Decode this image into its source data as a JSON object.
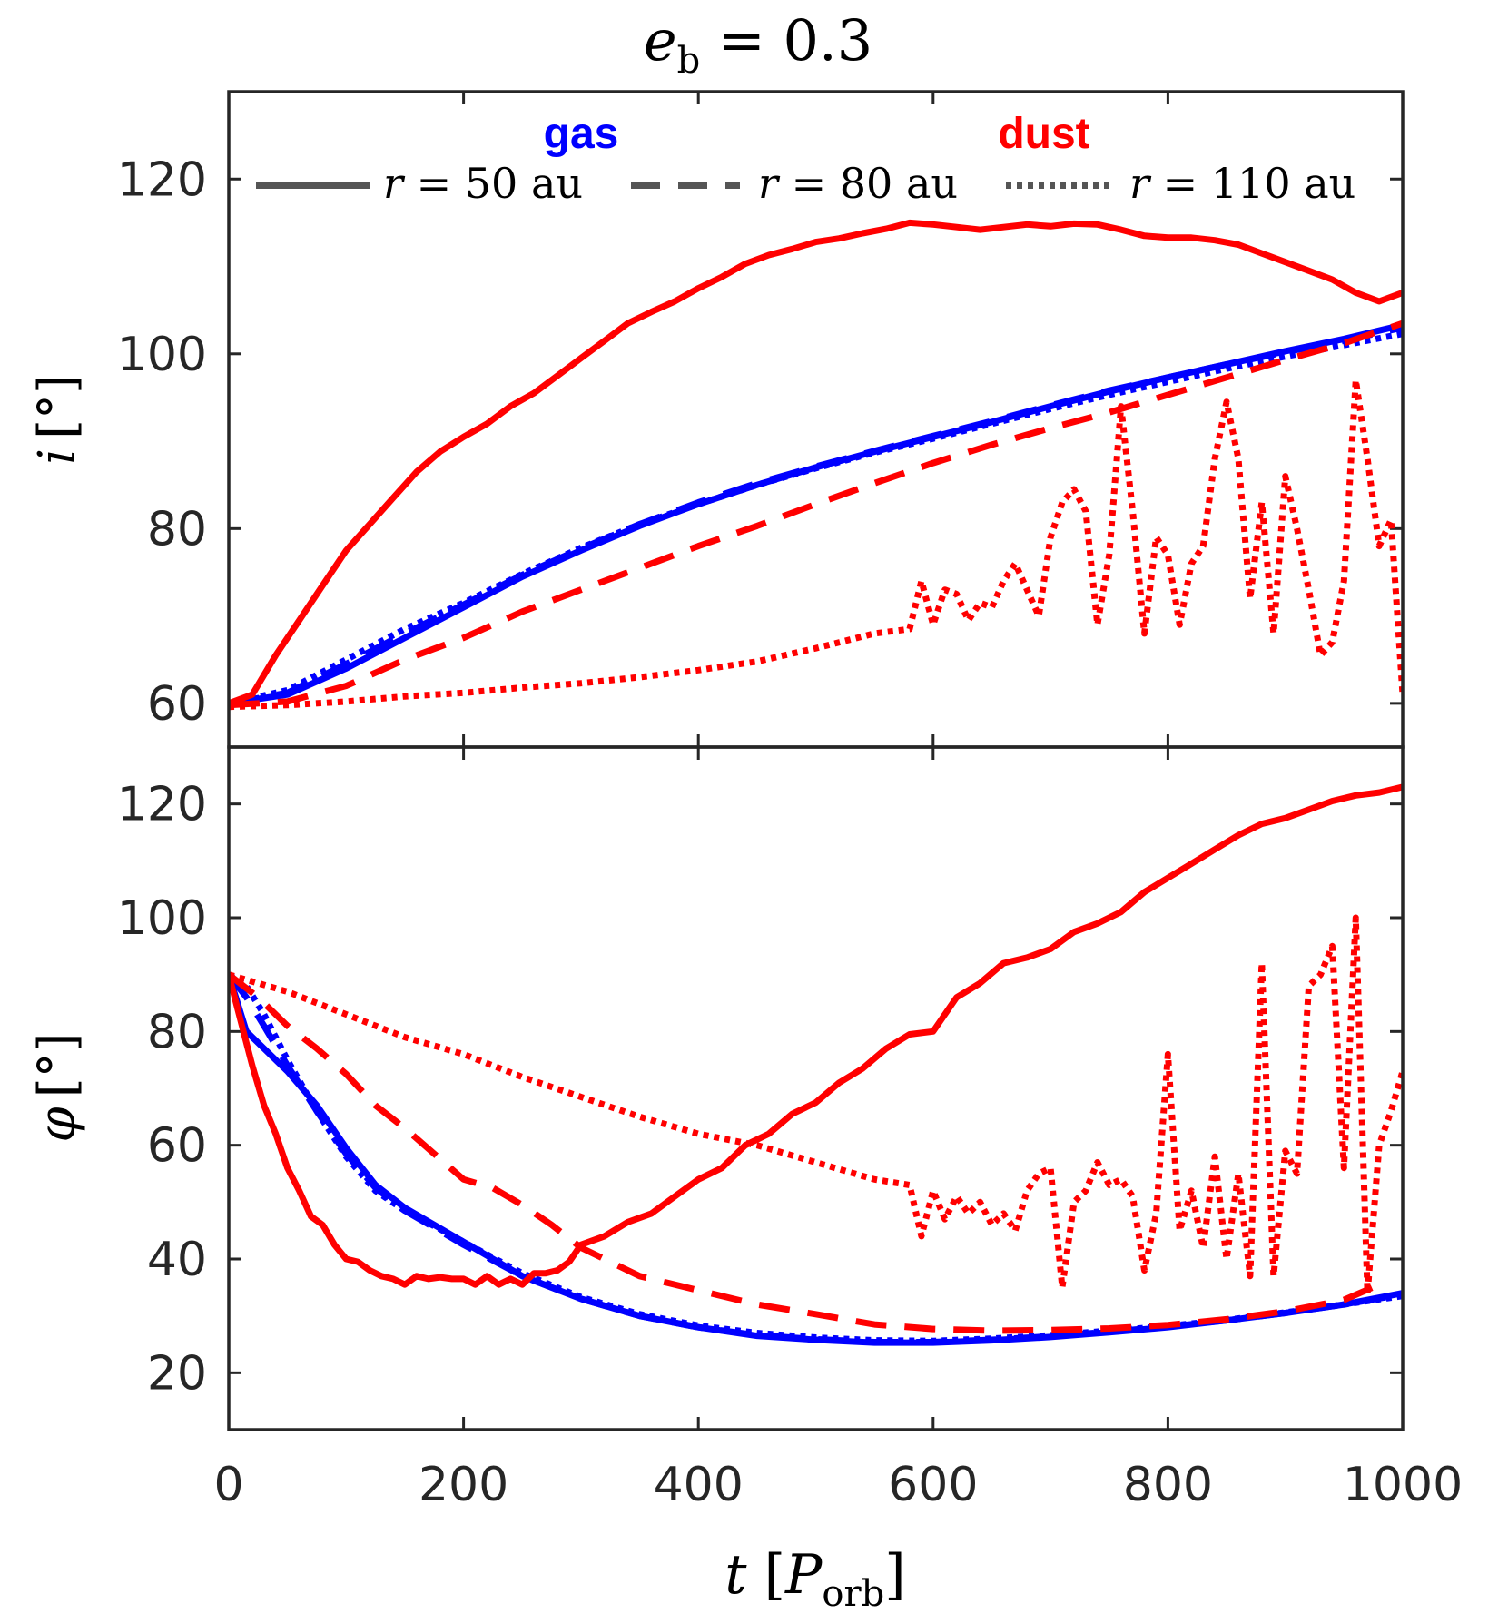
{
  "chart_data": [
    {
      "panel": "top",
      "type": "line",
      "title": "e_b = 0.3",
      "title_parts": {
        "var": "e",
        "sub": "b",
        "rest": " = 0.3"
      },
      "xlabel": "t [P_orb]",
      "ylabel": "i [°]",
      "ylabel_parts": {
        "var": "i",
        "unit": "[°]"
      },
      "xlim": [
        0,
        1000
      ],
      "ylim": [
        55,
        130
      ],
      "xticks": [
        0,
        200,
        400,
        600,
        800,
        1000
      ],
      "yticks": [
        60,
        80,
        100,
        120
      ],
      "ytick_labels": [
        "60",
        "80",
        "100",
        "120"
      ],
      "legend": {
        "position": "top",
        "group_labels": {
          "gas": "gas",
          "dust": "dust"
        },
        "entries": [
          {
            "style": "solid",
            "label_var": "r",
            "label_value": " = 50 au"
          },
          {
            "style": "dashed",
            "label_var": "r",
            "label_value": " = 80 au"
          },
          {
            "style": "dotted",
            "label_var": "r",
            "label_value": " = 110 au"
          }
        ]
      },
      "series": [
        {
          "name": "gas r=50 au",
          "color": "#0000ff",
          "style": "solid",
          "x": [
            0,
            50,
            100,
            150,
            200,
            250,
            300,
            350,
            400,
            450,
            500,
            550,
            600,
            650,
            700,
            750,
            800,
            850,
            900,
            950,
            1000
          ],
          "y": [
            60,
            61,
            64,
            67.5,
            71,
            74.5,
            77.5,
            80.3,
            82.8,
            85,
            87,
            88.8,
            90.5,
            92.2,
            94,
            95.7,
            97.3,
            98.8,
            100.3,
            101.7,
            103.3
          ]
        },
        {
          "name": "gas r=80 au",
          "color": "#0000ff",
          "style": "dashed",
          "x": [
            0,
            50,
            100,
            150,
            200,
            250,
            300,
            350,
            400,
            450,
            500,
            550,
            600,
            650,
            700,
            750,
            800,
            850,
            900,
            950,
            1000
          ],
          "y": [
            60,
            61.2,
            64.5,
            68,
            71.3,
            74.7,
            77.7,
            80.5,
            83,
            85.2,
            87.1,
            88.9,
            90.6,
            92.3,
            94.1,
            95.8,
            97.3,
            98.8,
            100.2,
            101.5,
            103
          ]
        },
        {
          "name": "gas r=110 au",
          "color": "#0000ff",
          "style": "dotted",
          "x": [
            0,
            50,
            100,
            150,
            200,
            250,
            300,
            350,
            400,
            450,
            500,
            550,
            600,
            650,
            700,
            750,
            800,
            850,
            900,
            950,
            1000
          ],
          "y": [
            60,
            61.5,
            65,
            68.5,
            71.5,
            74.8,
            77.8,
            80.5,
            82.8,
            85,
            86.9,
            88.7,
            90.3,
            92,
            93.7,
            95.3,
            96.8,
            98.3,
            99.7,
            101,
            102.3
          ]
        },
        {
          "name": "dust r=50 au",
          "color": "#ff0000",
          "style": "solid",
          "x": [
            0,
            20,
            40,
            60,
            80,
            100,
            120,
            140,
            160,
            180,
            200,
            220,
            240,
            260,
            280,
            300,
            320,
            340,
            360,
            380,
            400,
            420,
            440,
            460,
            480,
            500,
            520,
            540,
            560,
            580,
            600,
            620,
            640,
            660,
            680,
            700,
            720,
            740,
            760,
            780,
            800,
            820,
            840,
            860,
            880,
            900,
            920,
            940,
            960,
            980,
            1000
          ],
          "y": [
            60,
            61,
            65.5,
            69.5,
            73.5,
            77.5,
            80.5,
            83.5,
            86.5,
            88.8,
            90.5,
            92,
            94,
            95.5,
            97.5,
            99.5,
            101.5,
            103.5,
            104.8,
            106,
            107.5,
            108.8,
            110.3,
            111.3,
            112,
            112.8,
            113.2,
            113.8,
            114.3,
            115,
            114.8,
            114.5,
            114.2,
            114.5,
            114.8,
            114.6,
            114.9,
            114.8,
            114.2,
            113.5,
            113.3,
            113.3,
            113,
            112.5,
            111.5,
            110.5,
            109.5,
            108.5,
            107,
            106,
            107
          ]
        },
        {
          "name": "dust r=80 au",
          "color": "#ff0000",
          "style": "dashed",
          "x": [
            0,
            50,
            100,
            150,
            200,
            250,
            300,
            350,
            400,
            450,
            500,
            550,
            600,
            650,
            700,
            750,
            800,
            850,
            900,
            950,
            1000
          ],
          "y": [
            59.8,
            60.2,
            62,
            65,
            67.5,
            70.5,
            73,
            75.5,
            78,
            80.3,
            82.8,
            85.2,
            87.5,
            89.6,
            91.5,
            93.3,
            95.3,
            97.3,
            99.3,
            101.2,
            103.5
          ]
        },
        {
          "name": "dust r=110 au",
          "color": "#ff0000",
          "style": "dotted",
          "x": [
            0,
            50,
            100,
            150,
            200,
            250,
            300,
            350,
            400,
            450,
            500,
            550,
            580,
            590,
            600,
            610,
            620,
            630,
            640,
            650,
            660,
            670,
            680,
            690,
            700,
            710,
            720,
            730,
            740,
            750,
            760,
            770,
            780,
            790,
            800,
            810,
            820,
            830,
            840,
            850,
            860,
            870,
            880,
            890,
            900,
            910,
            920,
            930,
            940,
            950,
            960,
            970,
            980,
            990,
            1000
          ],
          "y": [
            59.6,
            59.8,
            60.2,
            60.8,
            61.2,
            61.8,
            62.3,
            63,
            63.8,
            64.8,
            66.3,
            68,
            68.5,
            74,
            69,
            73,
            72.5,
            69.5,
            71.5,
            71,
            74,
            76,
            73,
            70,
            79,
            83,
            84.5,
            82,
            69,
            77,
            94,
            82,
            68,
            79,
            77,
            69,
            76,
            78,
            88,
            94.5,
            88,
            72,
            83,
            68,
            86,
            80,
            73,
            65.5,
            67,
            74,
            97,
            88,
            78,
            81,
            61
          ]
        }
      ]
    },
    {
      "panel": "bottom",
      "type": "line",
      "xlabel": "t [P_orb]",
      "xlabel_parts": {
        "var": "t",
        "open": " [",
        "sub_var": "P",
        "sub": "orb",
        "close": "]"
      },
      "ylabel": "φ [°]",
      "ylabel_parts": {
        "var": "φ",
        "unit": "[°]"
      },
      "xlim": [
        0,
        1000
      ],
      "ylim": [
        10,
        130
      ],
      "xticks": [
        0,
        200,
        400,
        600,
        800,
        1000
      ],
      "xtick_labels": [
        "0",
        "200",
        "400",
        "600",
        "800",
        "1000"
      ],
      "yticks": [
        20,
        40,
        60,
        80,
        100,
        120
      ],
      "ytick_labels": [
        "20",
        "40",
        "60",
        "80",
        "100",
        "120"
      ],
      "series": [
        {
          "name": "gas r=50 au",
          "color": "#0000ff",
          "style": "solid",
          "x": [
            0,
            15,
            30,
            50,
            75,
            100,
            125,
            150,
            175,
            200,
            250,
            300,
            350,
            400,
            450,
            500,
            550,
            600,
            650,
            700,
            750,
            800,
            850,
            900,
            950,
            1000
          ],
          "y": [
            90,
            80,
            77,
            73,
            67,
            59.5,
            53,
            49,
            46,
            43,
            37,
            33,
            30,
            28,
            26.5,
            25.8,
            25.3,
            25.3,
            25.7,
            26.3,
            27.1,
            28,
            29.2,
            30.5,
            32,
            34
          ]
        },
        {
          "name": "gas r=80 au",
          "color": "#0000ff",
          "style": "dashed",
          "x": [
            0,
            15,
            30,
            50,
            75,
            100,
            125,
            150,
            175,
            200,
            250,
            300,
            350,
            400,
            450,
            500,
            550,
            600,
            650,
            700,
            750,
            800,
            850,
            900,
            950,
            1000
          ],
          "y": [
            90,
            86,
            81,
            74,
            66,
            58.5,
            52.5,
            48.5,
            45.5,
            42.5,
            37,
            33,
            30,
            28,
            26.6,
            25.9,
            25.4,
            25.4,
            25.8,
            26.4,
            27.2,
            28.1,
            29.2,
            30.5,
            32,
            33.8
          ]
        },
        {
          "name": "gas r=110 au",
          "color": "#0000ff",
          "style": "dotted",
          "x": [
            0,
            15,
            30,
            50,
            75,
            100,
            125,
            150,
            175,
            200,
            250,
            300,
            350,
            400,
            450,
            500,
            550,
            600,
            650,
            700,
            750,
            800,
            850,
            900,
            950,
            1000
          ],
          "y": [
            90,
            88,
            83,
            75,
            66,
            58,
            52,
            48.5,
            45.8,
            43,
            37.5,
            33.3,
            30.3,
            28.3,
            27,
            26.2,
            25.7,
            25.6,
            26,
            26.6,
            27.4,
            28.2,
            29.3,
            30.6,
            32,
            33.5
          ]
        },
        {
          "name": "dust r=50 au",
          "color": "#ff0000",
          "style": "solid",
          "x": [
            0,
            10,
            20,
            30,
            40,
            50,
            60,
            70,
            80,
            90,
            100,
            110,
            120,
            130,
            140,
            150,
            160,
            170,
            180,
            190,
            200,
            210,
            220,
            230,
            240,
            250,
            260,
            270,
            280,
            290,
            300,
            320,
            340,
            360,
            380,
            400,
            420,
            440,
            460,
            480,
            500,
            520,
            540,
            560,
            580,
            600,
            620,
            640,
            660,
            680,
            700,
            720,
            740,
            760,
            780,
            800,
            820,
            840,
            860,
            880,
            900,
            920,
            940,
            960,
            980,
            1000
          ],
          "y": [
            90,
            82,
            74,
            67,
            62,
            56,
            52,
            47.5,
            46,
            42.5,
            40,
            39.5,
            38,
            37,
            36.5,
            35.5,
            37,
            36.5,
            36.8,
            36.5,
            36.5,
            35.5,
            37,
            35.5,
            36.5,
            35.5,
            37.5,
            37.5,
            38,
            39.5,
            42.5,
            44,
            46.5,
            48,
            51,
            54,
            56,
            60,
            62,
            65.5,
            67.5,
            71,
            73.5,
            77,
            79.5,
            80,
            86,
            88.5,
            92,
            93,
            94.5,
            97.5,
            99,
            101,
            104.5,
            107,
            109.5,
            112,
            114.5,
            116.5,
            117.5,
            119,
            120.5,
            121.5,
            122,
            123
          ]
        },
        {
          "name": "dust r=80 au",
          "color": "#ff0000",
          "style": "dashed",
          "x": [
            0,
            25,
            50,
            75,
            100,
            125,
            150,
            175,
            200,
            225,
            250,
            275,
            300,
            350,
            400,
            450,
            500,
            550,
            600,
            650,
            700,
            750,
            800,
            850,
            900,
            950,
            980
          ],
          "y": [
            90,
            86,
            81,
            77,
            72.5,
            67,
            63,
            58.5,
            54,
            52.5,
            49.5,
            46,
            42,
            37,
            34.5,
            32,
            30.3,
            28.5,
            27.7,
            27.4,
            27.5,
            27.8,
            28.4,
            29.4,
            30.8,
            32.8,
            35.5
          ]
        },
        {
          "name": "dust r=110 au",
          "color": "#ff0000",
          "style": "dotted",
          "x": [
            0,
            50,
            100,
            150,
            200,
            250,
            300,
            350,
            400,
            450,
            500,
            550,
            580,
            590,
            600,
            610,
            620,
            630,
            640,
            650,
            660,
            670,
            680,
            690,
            700,
            710,
            720,
            730,
            740,
            750,
            760,
            770,
            780,
            790,
            800,
            810,
            820,
            830,
            840,
            850,
            860,
            870,
            880,
            890,
            900,
            910,
            920,
            930,
            940,
            950,
            960,
            970,
            980,
            990,
            1000
          ],
          "y": [
            90,
            87,
            83,
            79,
            76,
            72,
            68.5,
            65,
            62,
            60,
            57,
            54,
            53,
            44,
            52,
            47,
            51,
            48,
            50,
            46,
            48,
            45,
            52,
            55,
            56,
            35,
            50,
            52,
            57,
            53,
            54,
            51,
            38,
            48,
            76,
            45,
            52,
            42,
            58,
            40,
            55,
            37,
            92,
            37,
            59,
            55,
            88,
            90,
            95,
            56,
            100,
            34,
            60,
            66,
            73
          ]
        }
      ]
    }
  ]
}
